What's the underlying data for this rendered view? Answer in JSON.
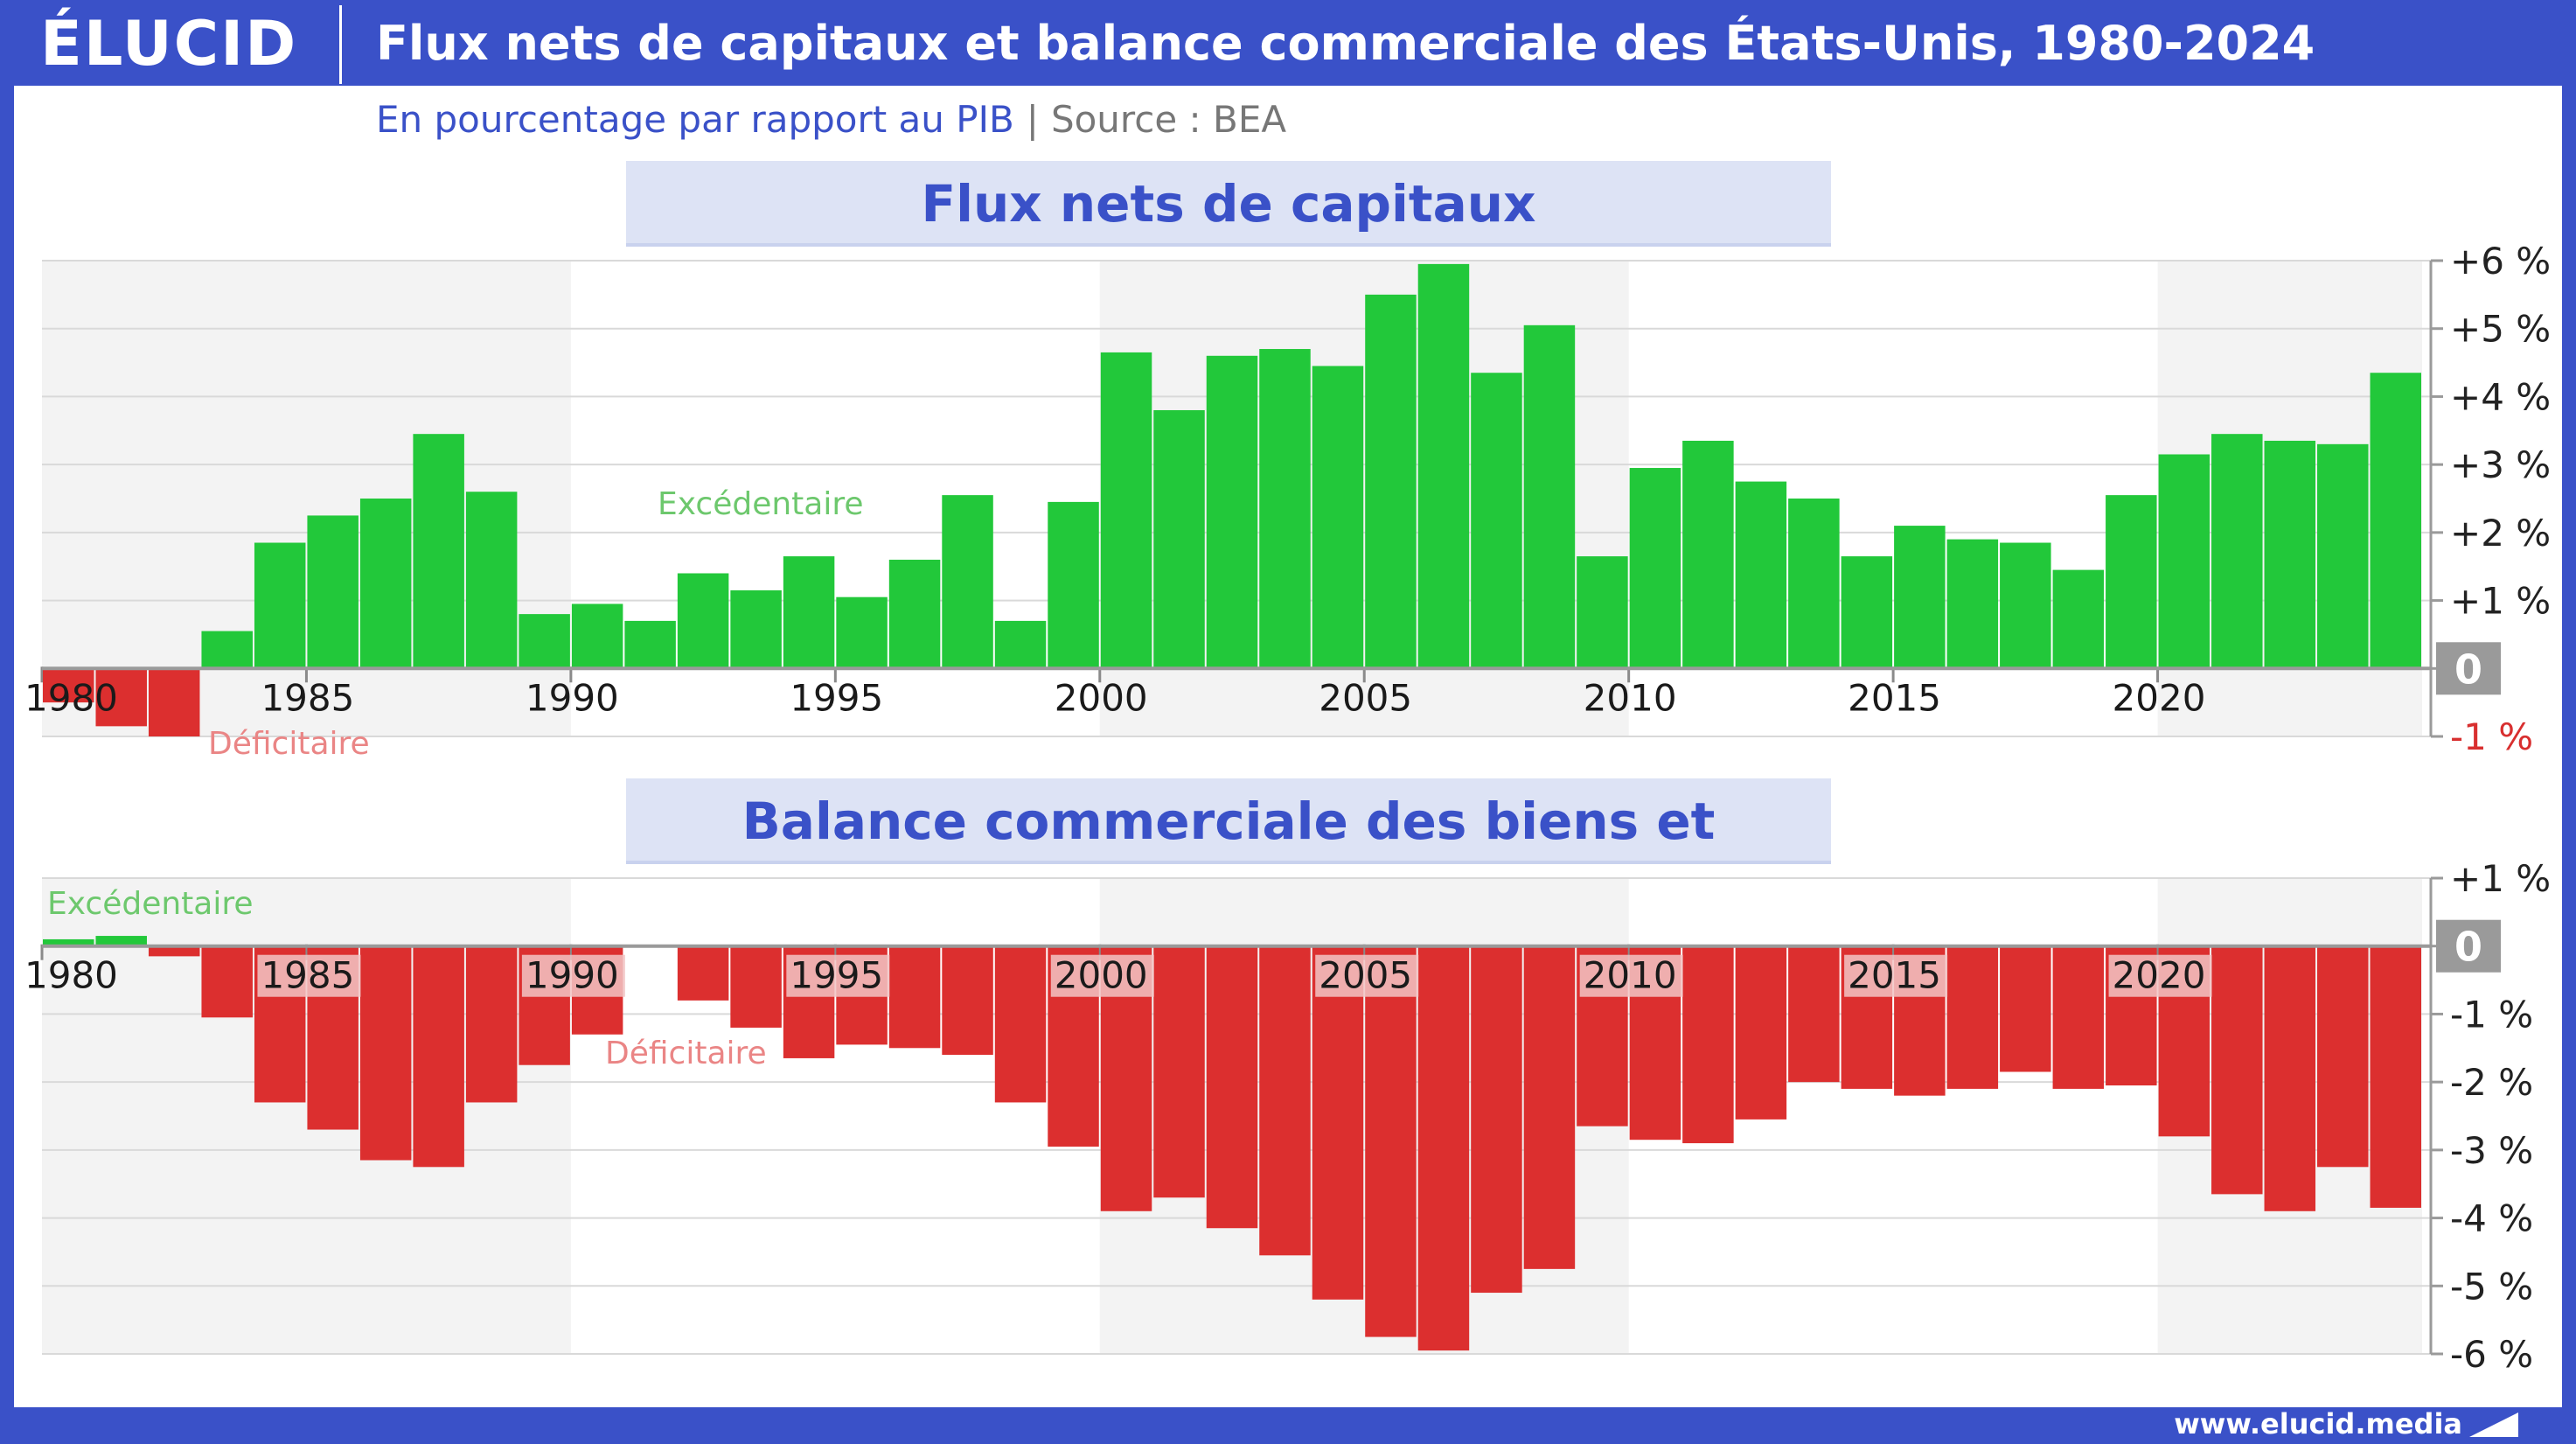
{
  "header": {
    "logo": "ÉLUCID",
    "title": "Flux nets de capitaux et balance commerciale des États-Unis, 1980-2024",
    "subtitle": "En pourcentage par rapport au PIB",
    "source": "Source : BEA"
  },
  "footer": {
    "url": "www.elucid.media"
  },
  "colors": {
    "frame": "#3a51c8",
    "positive": "#22c83a",
    "negative": "#dc2f2f",
    "band": "#f3f3f3"
  },
  "chart_data": [
    {
      "type": "bar",
      "title": "Flux nets de capitaux",
      "x": [
        1980,
        1981,
        1982,
        1983,
        1984,
        1985,
        1986,
        1987,
        1988,
        1989,
        1990,
        1991,
        1992,
        1993,
        1994,
        1995,
        1996,
        1997,
        1998,
        1999,
        2000,
        2001,
        2002,
        2003,
        2004,
        2005,
        2006,
        2007,
        2008,
        2009,
        2010,
        2011,
        2012,
        2013,
        2014,
        2015,
        2016,
        2017,
        2018,
        2019,
        2020,
        2021,
        2022,
        2023,
        2024
      ],
      "values": [
        -0.5,
        -0.85,
        -1.0,
        0.55,
        1.85,
        2.25,
        2.5,
        3.45,
        2.6,
        0.8,
        0.95,
        0.7,
        1.4,
        1.15,
        1.65,
        1.05,
        1.6,
        2.55,
        0.7,
        2.45,
        4.65,
        3.8,
        4.6,
        4.7,
        4.45,
        5.5,
        5.95,
        4.35,
        5.05,
        1.65,
        2.95,
        3.35,
        2.75,
        2.5,
        1.65,
        2.1,
        1.9,
        1.85,
        1.45,
        2.55,
        3.15,
        3.45,
        3.35,
        3.3,
        4.35
      ],
      "ylim": [
        -1,
        6
      ],
      "yticks": [
        "+6 %",
        "+5 %",
        "+4 %",
        "+3 %",
        "+2 %",
        "+1 %",
        "0",
        "-1 %"
      ],
      "xtick_labels": [
        "1980",
        "1985",
        "1990",
        "1995",
        "2000",
        "2005",
        "2010",
        "2015",
        "2020"
      ],
      "annotations": {
        "positive": "Excédentaire",
        "negative": "Déficitaire"
      },
      "grid": true,
      "legend": "none"
    },
    {
      "type": "bar",
      "title": "Balance commerciale des biens et services",
      "x": [
        1980,
        1981,
        1982,
        1983,
        1984,
        1985,
        1986,
        1987,
        1988,
        1989,
        1990,
        1991,
        1992,
        1993,
        1994,
        1995,
        1996,
        1997,
        1998,
        1999,
        2000,
        2001,
        2002,
        2003,
        2004,
        2005,
        2006,
        2007,
        2008,
        2009,
        2010,
        2011,
        2012,
        2013,
        2014,
        2015,
        2016,
        2017,
        2018,
        2019,
        2020,
        2021,
        2022,
        2023,
        2024
      ],
      "values": [
        0.1,
        0.15,
        -0.15,
        -1.05,
        -2.3,
        -2.7,
        -3.15,
        -3.25,
        -2.3,
        -1.75,
        -1.3,
        0.0,
        -0.8,
        -1.2,
        -1.65,
        -1.45,
        -1.5,
        -1.6,
        -2.3,
        -2.95,
        -3.9,
        -3.7,
        -4.15,
        -4.55,
        -5.2,
        -5.75,
        -5.95,
        -5.1,
        -4.75,
        -2.65,
        -2.85,
        -2.9,
        -2.55,
        -2.0,
        -2.1,
        -2.2,
        -2.1,
        -1.85,
        -2.1,
        -2.05,
        -2.8,
        -3.65,
        -3.9,
        -3.25,
        -3.85
      ],
      "ylim": [
        -6,
        1
      ],
      "yticks": [
        "+1 %",
        "0",
        "-1 %",
        "-2 %",
        "-3 %",
        "-4 %",
        "-5 %",
        "-6 %"
      ],
      "xtick_labels": [
        "1980",
        "1985",
        "1990",
        "1995",
        "2000",
        "2005",
        "2010",
        "2015",
        "2020"
      ],
      "annotations": {
        "positive": "Excédentaire",
        "negative": "Déficitaire"
      },
      "grid": true,
      "legend": "none"
    }
  ]
}
